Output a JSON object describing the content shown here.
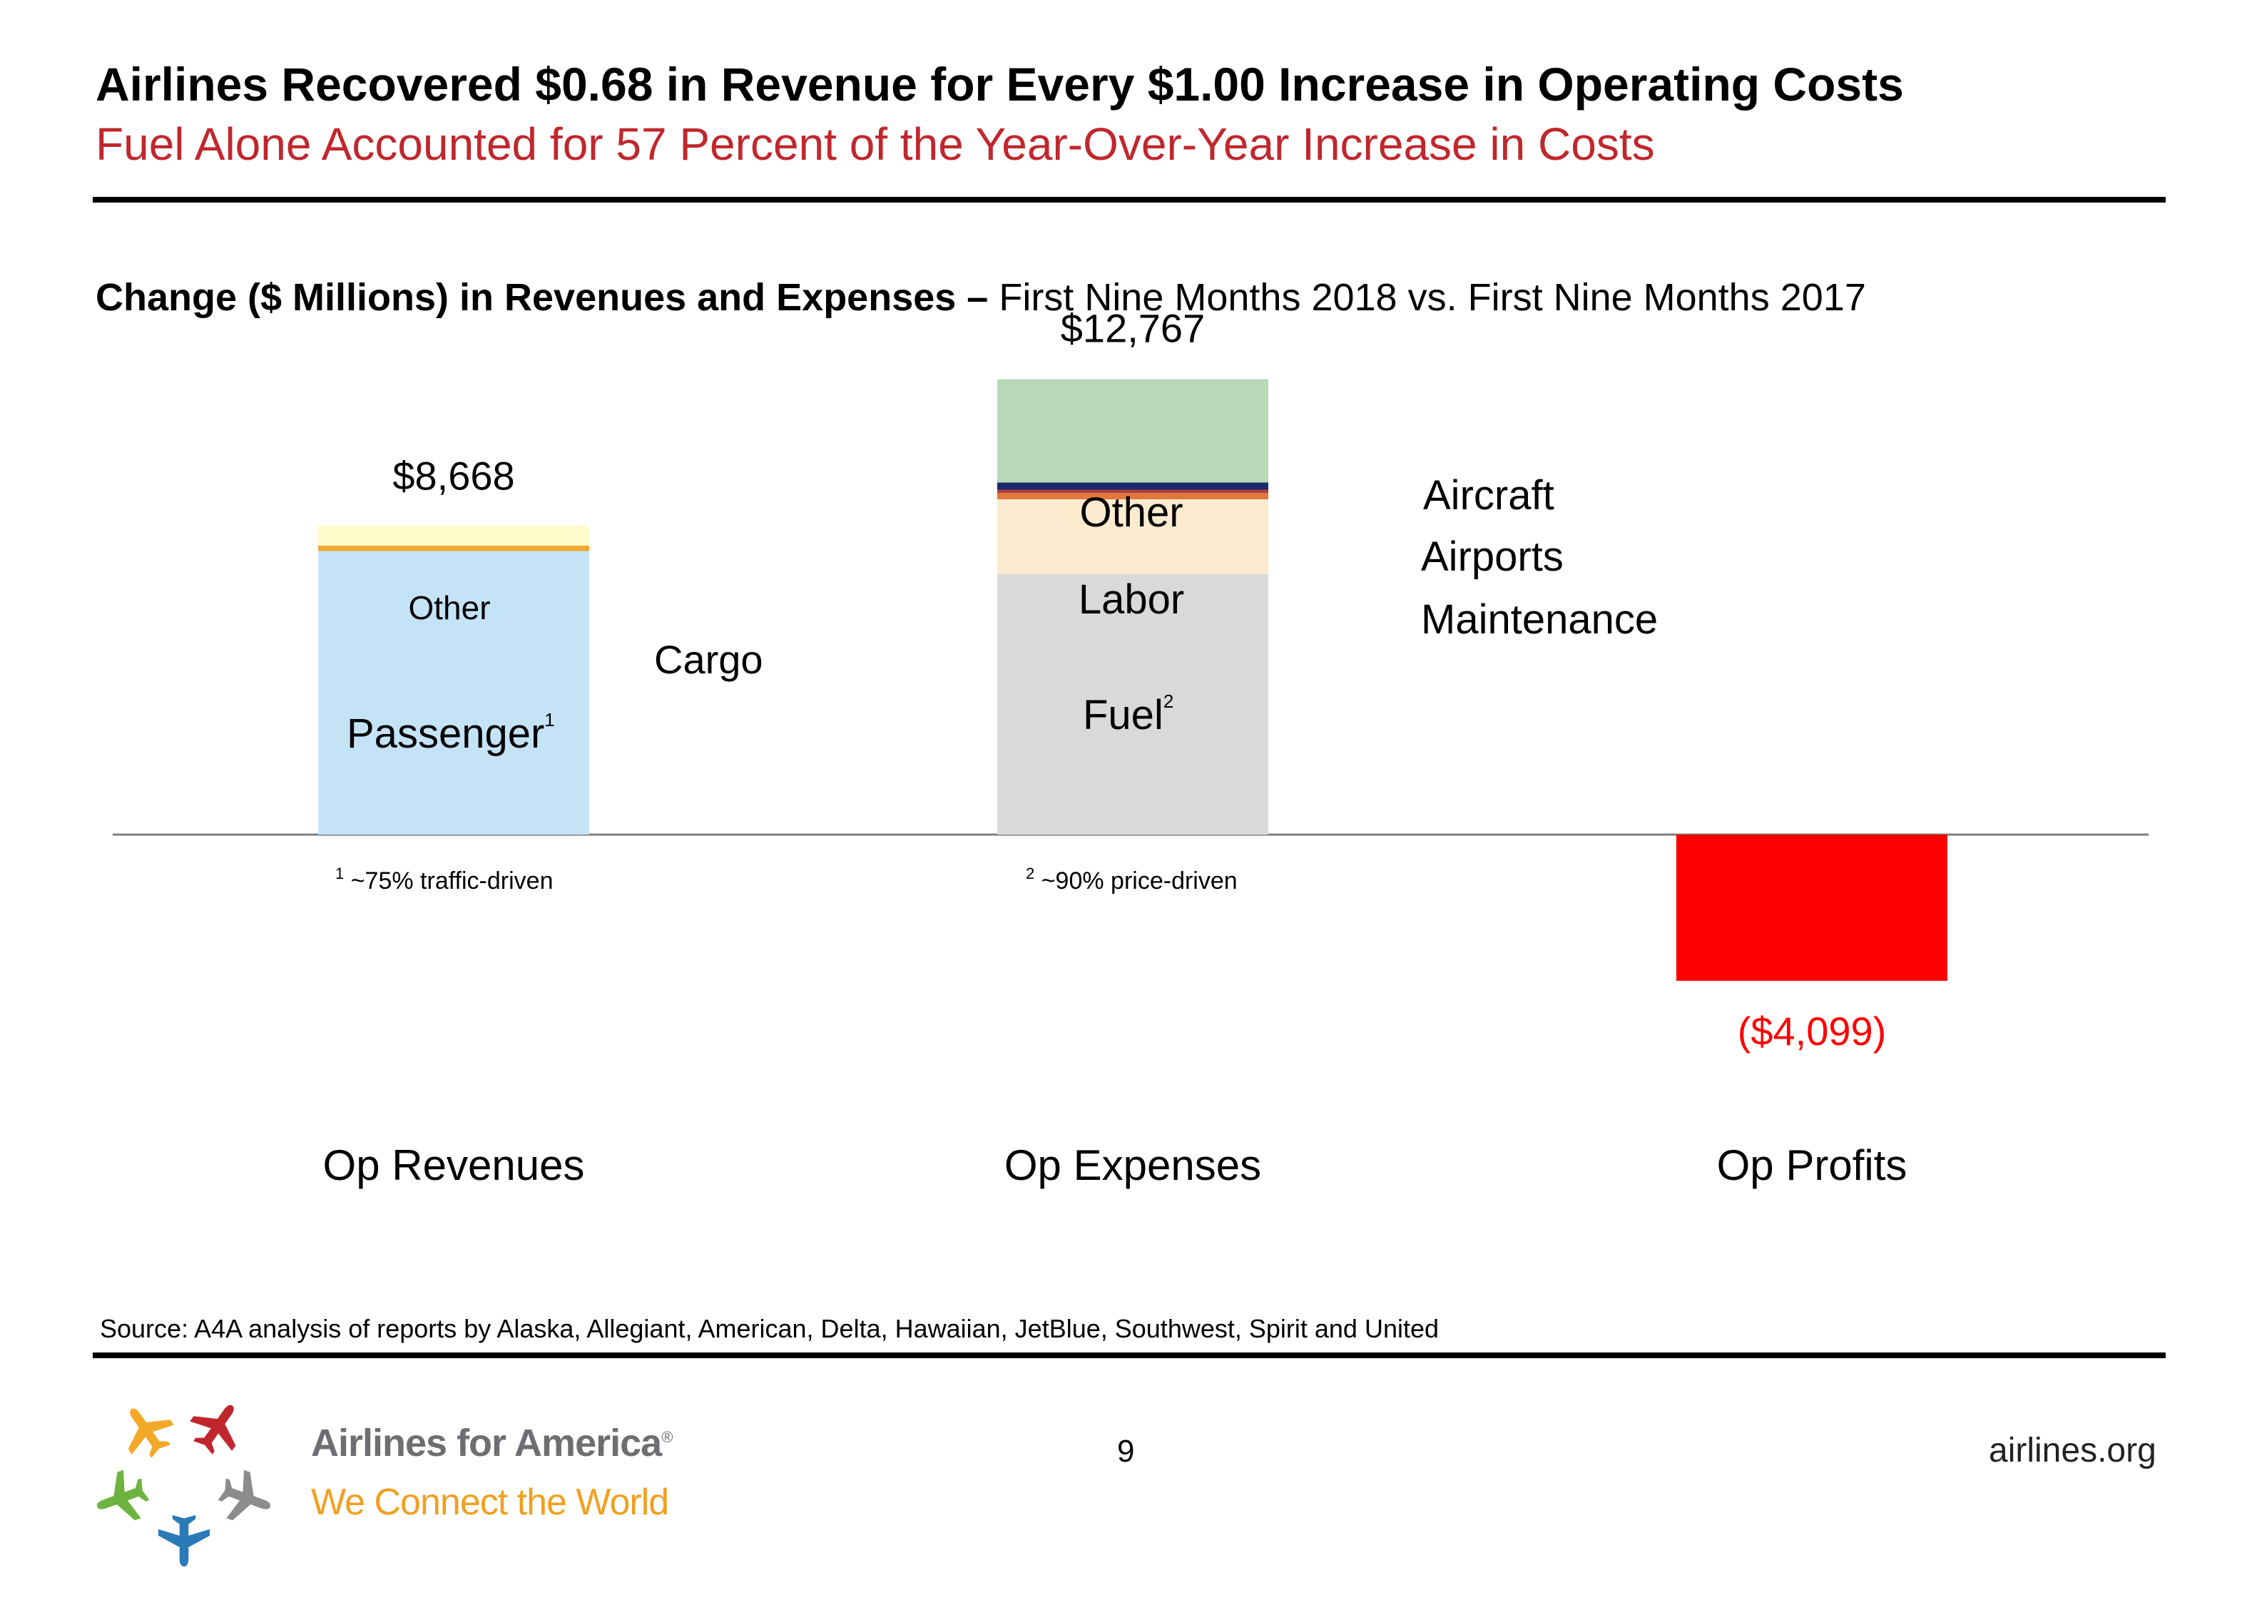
{
  "title": "Airlines Recovered $0.68 in Revenue for Every $1.00 Increase in Operating Costs",
  "subtitle": "Fuel Alone Accounted for 57 Percent of the Year-Over-Year Increase in Costs",
  "chart_heading": {
    "bold": "Change ($ Millions) in Revenues and Expenses –",
    "normal": " First Nine Months 2018 vs. First Nine Months 2017"
  },
  "colors": {
    "subtitle": "#c0272d",
    "passenger": "#c5e3f7",
    "cargo": "#f0a830",
    "revenue_other": "#fffccc",
    "fuel": "#d9d9d9",
    "labor": "#fdebd0",
    "maintenance": "#e07840",
    "airports": "#b04040",
    "aircraft": "#1a2a6c",
    "expense_other": "#b8d8b8",
    "profit": "#ff0000"
  },
  "chart_data": {
    "type": "bar",
    "categories": [
      "Op Revenues",
      "Op Expenses",
      "Op Profits"
    ],
    "ylim": [
      -4500,
      13500
    ],
    "series": [
      {
        "name": "Passenger",
        "values": [
          7950,
          null,
          null
        ]
      },
      {
        "name": "Cargo",
        "values": [
          150,
          null,
          null
        ]
      },
      {
        "name": "Other",
        "values": [
          568,
          null,
          null
        ]
      },
      {
        "name": "Fuel",
        "values": [
          null,
          7300,
          null
        ]
      },
      {
        "name": "Labor",
        "values": [
          null,
          2100,
          null
        ]
      },
      {
        "name": "Maintenance",
        "values": [
          null,
          180,
          null
        ]
      },
      {
        "name": "Airports",
        "values": [
          null,
          90,
          null
        ]
      },
      {
        "name": "Aircraft",
        "values": [
          null,
          200,
          null
        ]
      },
      {
        "name": "Other",
        "values": [
          null,
          2897,
          null
        ]
      },
      {
        "name": "",
        "values": [
          null,
          null,
          -4099
        ]
      }
    ],
    "totals": [
      "$8,668",
      "$12,767",
      "($4,099)"
    ],
    "segment_labels": {
      "passenger": "Passenger",
      "passenger_note": "1",
      "revenue_other": "Other",
      "cargo": "Cargo",
      "fuel": "Fuel",
      "fuel_note": "2",
      "labor": "Labor",
      "expense_other": "Other",
      "aircraft": "Aircraft",
      "airports": "Airports",
      "maintenance": "Maintenance"
    },
    "footnotes": [
      {
        "mark": "1",
        "text": " ~75% traffic-driven"
      },
      {
        "mark": "2",
        "text": " ~90% price-driven"
      }
    ]
  },
  "source": "Source: A4A analysis of reports by Alaska, Allegiant, American, Delta, Hawaiian, JetBlue, Southwest, Spirit and United",
  "page_number": "9",
  "footer_site": "airlines.org",
  "brand": {
    "name": "Airlines for America",
    "trademark": "®",
    "tagline": "We Connect the World"
  }
}
